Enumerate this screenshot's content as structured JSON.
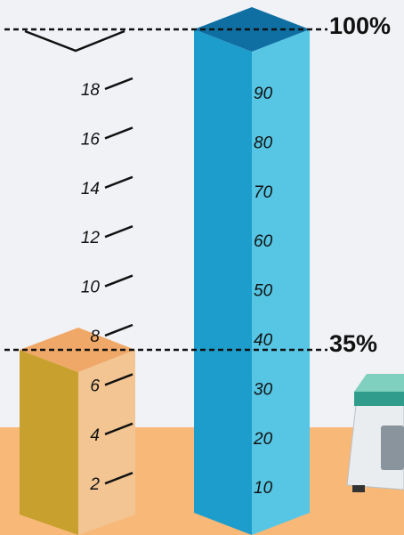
{
  "markers": {
    "full": "100%",
    "partial": "35%"
  },
  "small_scale": [
    18,
    16,
    14,
    12,
    10,
    8,
    6,
    4,
    2
  ],
  "column_scale": [
    90,
    80,
    70,
    60,
    50,
    40,
    30,
    20,
    10
  ]
}
